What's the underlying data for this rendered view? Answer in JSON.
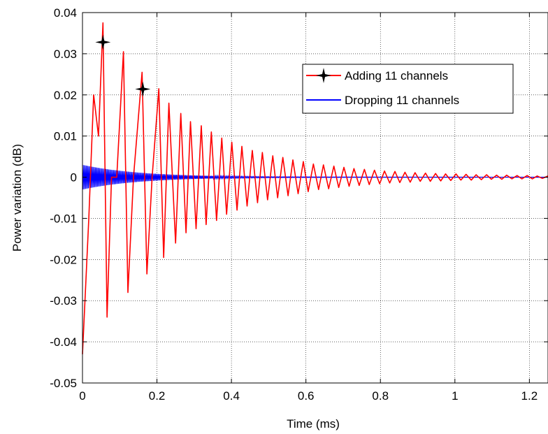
{
  "chart_data": {
    "type": "line",
    "title": "",
    "xlabel": "Time (ms)",
    "ylabel": "Power variation (dB)",
    "xlim": [
      0,
      1.25
    ],
    "ylim": [
      -0.05,
      0.04
    ],
    "x_ticks": [
      0,
      0.2,
      0.4,
      0.6,
      0.8,
      1,
      1.2
    ],
    "x_tick_labels": [
      "0",
      "0.2",
      "0.4",
      "0.6",
      "0.8",
      "1",
      "1.2"
    ],
    "y_ticks": [
      -0.05,
      -0.04,
      -0.03,
      -0.02,
      -0.01,
      0,
      0.01,
      0.02,
      0.03,
      0.04
    ],
    "y_tick_labels": [
      "-0.05",
      "-0.04",
      "-0.03",
      "-0.02",
      "-0.01",
      "0",
      "0.01",
      "0.02",
      "0.03",
      "0.04"
    ],
    "grid": true,
    "legend_position": "top-right",
    "series": [
      {
        "name": "Adding 11 channels",
        "color": "#ff0000",
        "marker": "star",
        "x": [
          0.0,
          0.017,
          0.03,
          0.043,
          0.055,
          0.066,
          0.078,
          0.092,
          0.11,
          0.122,
          0.137,
          0.16,
          0.173,
          0.187,
          0.205,
          0.218,
          0.232,
          0.25,
          0.264,
          0.278,
          0.29,
          0.305,
          0.319,
          0.332,
          0.346,
          0.36,
          0.374,
          0.387,
          0.401,
          0.415,
          0.428,
          0.442,
          0.456,
          0.47,
          0.483,
          0.497,
          0.511,
          0.524,
          0.538,
          0.552,
          0.565,
          0.579,
          0.593,
          0.606,
          0.62,
          0.634,
          0.647,
          0.661,
          0.675,
          0.688,
          0.702,
          0.716,
          0.729,
          0.743,
          0.757,
          0.77,
          0.784,
          0.798,
          0.811,
          0.825,
          0.839,
          0.852,
          0.866,
          0.88,
          0.893,
          0.907,
          0.921,
          0.934,
          0.948,
          0.962,
          0.975,
          0.989,
          1.003,
          1.016,
          1.03,
          1.044,
          1.057,
          1.071,
          1.085,
          1.098,
          1.112,
          1.126,
          1.139,
          1.153,
          1.167,
          1.18,
          1.194,
          1.208,
          1.221,
          1.235,
          1.25
        ],
        "values": [
          -0.043,
          -0.01,
          0.02,
          0.01,
          0.0375,
          -0.034,
          0.0,
          0.0,
          0.0305,
          -0.028,
          0.0,
          0.0255,
          -0.0235,
          0.0,
          0.0215,
          -0.0195,
          0.018,
          -0.016,
          0.0155,
          -0.0135,
          0.0135,
          -0.0125,
          0.0125,
          -0.0115,
          0.011,
          -0.0105,
          0.0095,
          -0.009,
          0.0085,
          -0.008,
          0.0075,
          -0.007,
          0.0065,
          -0.0062,
          0.006,
          -0.0055,
          0.0052,
          -0.005,
          0.0048,
          -0.0045,
          0.0042,
          -0.004,
          0.0038,
          -0.0035,
          0.0032,
          -0.003,
          0.003,
          -0.0028,
          0.0027,
          -0.0025,
          0.0024,
          -0.0022,
          0.0021,
          -0.002,
          0.0019,
          -0.0018,
          0.0017,
          -0.0016,
          0.0015,
          -0.0014,
          0.0014,
          -0.0013,
          0.0012,
          -0.0012,
          0.0011,
          -0.001,
          0.001,
          -0.001,
          0.0009,
          -0.0009,
          0.0008,
          -0.0008,
          0.0008,
          -0.0007,
          0.0007,
          -0.0007,
          0.0006,
          -0.0006,
          0.0006,
          -0.0005,
          0.0005,
          -0.0005,
          0.0005,
          -0.0004,
          0.0004,
          -0.0004,
          0.0004,
          -0.0004,
          0.0003,
          -0.0003,
          0.0003
        ],
        "marker_points": [
          [
            0.055,
            0.0328
          ],
          [
            0.162,
            0.0214
          ]
        ]
      },
      {
        "name": "Dropping 11 channels",
        "color": "#0000ff",
        "marker": "none",
        "envelope_start": 0.003,
        "decay_end_x": 0.5,
        "oscillation_period": 0.0035,
        "x_range": [
          0,
          1.25
        ]
      }
    ]
  }
}
